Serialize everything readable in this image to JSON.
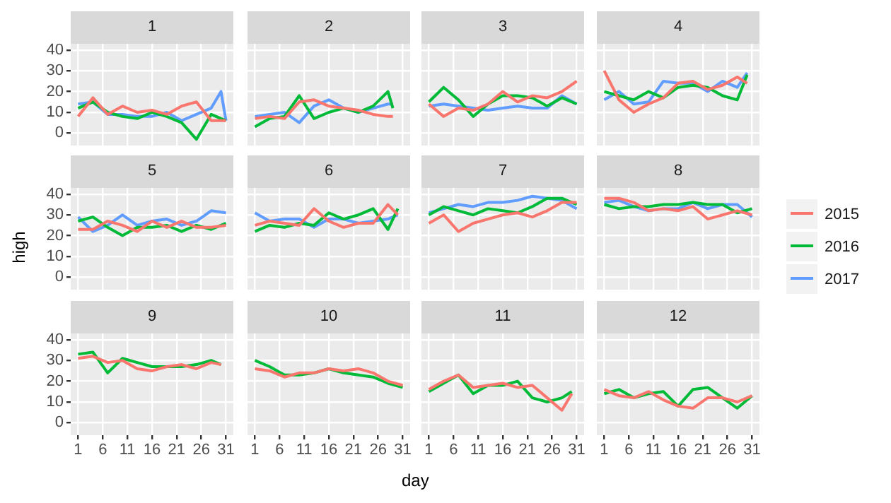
{
  "chart_data": [
    {
      "type": "line",
      "title": "1",
      "legend": "right",
      "x": [
        1,
        4,
        7,
        10,
        13,
        16,
        19,
        22,
        25,
        28,
        30,
        31
      ],
      "xlim": [
        -0.5,
        32.5
      ],
      "ylim": [
        -6,
        43
      ],
      "xticks": [
        1,
        6,
        11,
        16,
        21,
        26,
        31
      ],
      "yticks": [
        0,
        10,
        20,
        30,
        40
      ],
      "grid": true,
      "tick_labels": "y",
      "series": [
        {
          "name": "2015",
          "color": "#f8766d",
          "values": [
            8,
            17,
            9,
            13,
            10,
            11,
            9,
            13,
            15,
            6,
            6,
            6
          ]
        },
        {
          "name": "2016",
          "color": "#00ba38",
          "values": [
            12,
            15,
            10,
            8,
            7,
            10,
            8,
            5,
            -3,
            9,
            7,
            6
          ]
        },
        {
          "name": "2017",
          "color": "#619cff",
          "values": [
            14,
            15,
            9,
            9,
            8,
            8,
            10,
            6,
            9,
            12,
            20,
            6
          ]
        }
      ]
    },
    {
      "type": "line",
      "title": "2",
      "x": [
        1,
        4,
        7,
        10,
        13,
        16,
        19,
        22,
        25,
        28,
        29
      ],
      "xlim": [
        -0.5,
        32.5
      ],
      "ylim": [
        -6,
        43
      ],
      "xticks": [
        1,
        6,
        11,
        16,
        21,
        26,
        31
      ],
      "yticks": [
        0,
        10,
        20,
        30,
        40
      ],
      "grid": true,
      "tick_labels": false,
      "series": [
        {
          "name": "2015",
          "color": "#f8766d",
          "values": [
            7,
            8,
            7,
            15,
            16,
            13,
            12,
            11,
            9,
            8,
            8
          ]
        },
        {
          "name": "2016",
          "color": "#00ba38",
          "values": [
            3,
            7,
            8,
            18,
            7,
            10,
            12,
            10,
            13,
            20,
            12
          ]
        },
        {
          "name": "2017",
          "color": "#619cff",
          "values": [
            8,
            9,
            10,
            5,
            13,
            16,
            12,
            10,
            12,
            14,
            14
          ]
        }
      ]
    },
    {
      "type": "line",
      "title": "3",
      "x": [
        1,
        4,
        7,
        10,
        13,
        16,
        19,
        22,
        25,
        28,
        31
      ],
      "xlim": [
        -0.5,
        32.5
      ],
      "ylim": [
        -6,
        43
      ],
      "xticks": [
        1,
        6,
        11,
        16,
        21,
        26,
        31
      ],
      "yticks": [
        0,
        10,
        20,
        30,
        40
      ],
      "grid": true,
      "tick_labels": false,
      "series": [
        {
          "name": "2015",
          "color": "#f8766d",
          "values": [
            14,
            8,
            12,
            11,
            14,
            20,
            15,
            18,
            17,
            20,
            25
          ]
        },
        {
          "name": "2016",
          "color": "#00ba38",
          "values": [
            15,
            22,
            16,
            8,
            14,
            18,
            18,
            17,
            13,
            17,
            14
          ]
        },
        {
          "name": "2017",
          "color": "#619cff",
          "values": [
            13,
            14,
            13,
            12,
            11,
            12,
            13,
            12,
            12,
            18,
            14
          ]
        }
      ]
    },
    {
      "type": "line",
      "title": "4",
      "x": [
        1,
        4,
        7,
        10,
        13,
        16,
        19,
        22,
        25,
        28,
        30
      ],
      "xlim": [
        -0.5,
        32.5
      ],
      "ylim": [
        -6,
        43
      ],
      "xticks": [
        1,
        6,
        11,
        16,
        21,
        26,
        31
      ],
      "yticks": [
        0,
        10,
        20,
        30,
        40
      ],
      "grid": true,
      "tick_labels": false,
      "series": [
        {
          "name": "2015",
          "color": "#f8766d",
          "values": [
            30,
            16,
            10,
            14,
            17,
            24,
            25,
            21,
            23,
            27,
            24
          ]
        },
        {
          "name": "2016",
          "color": "#00ba38",
          "values": [
            20,
            18,
            16,
            20,
            17,
            22,
            23,
            22,
            18,
            16,
            28
          ]
        },
        {
          "name": "2017",
          "color": "#619cff",
          "values": [
            16,
            20,
            14,
            15,
            25,
            24,
            24,
            20,
            25,
            22,
            29
          ]
        }
      ]
    },
    {
      "type": "line",
      "title": "5",
      "ylabel": "high",
      "x": [
        1,
        4,
        7,
        10,
        13,
        16,
        19,
        22,
        25,
        28,
        31
      ],
      "xlim": [
        -0.5,
        32.5
      ],
      "ylim": [
        -6,
        43
      ],
      "xticks": [
        1,
        6,
        11,
        16,
        21,
        26,
        31
      ],
      "yticks": [
        0,
        10,
        20,
        30,
        40
      ],
      "grid": true,
      "tick_labels": "y",
      "series": [
        {
          "name": "2015",
          "color": "#f8766d",
          "values": [
            23,
            23,
            27,
            25,
            22,
            27,
            24,
            27,
            24,
            24,
            25
          ]
        },
        {
          "name": "2016",
          "color": "#00ba38",
          "values": [
            27,
            29,
            24,
            20,
            24,
            24,
            25,
            22,
            25,
            23,
            26
          ]
        },
        {
          "name": "2017",
          "color": "#619cff",
          "values": [
            29,
            22,
            25,
            30,
            25,
            27,
            28,
            25,
            27,
            32,
            31
          ]
        }
      ]
    },
    {
      "type": "line",
      "title": "6",
      "x": [
        1,
        4,
        7,
        10,
        13,
        16,
        19,
        22,
        25,
        28,
        30
      ],
      "xlim": [
        -0.5,
        32.5
      ],
      "ylim": [
        -6,
        43
      ],
      "xticks": [
        1,
        6,
        11,
        16,
        21,
        26,
        31
      ],
      "yticks": [
        0,
        10,
        20,
        30,
        40
      ],
      "grid": true,
      "tick_labels": false,
      "series": [
        {
          "name": "2015",
          "color": "#f8766d",
          "values": [
            25,
            27,
            26,
            25,
            33,
            27,
            24,
            26,
            26,
            35,
            30
          ]
        },
        {
          "name": "2016",
          "color": "#00ba38",
          "values": [
            22,
            25,
            24,
            26,
            25,
            31,
            28,
            30,
            33,
            23,
            33
          ]
        },
        {
          "name": "2017",
          "color": "#619cff",
          "values": [
            31,
            27,
            28,
            28,
            24,
            28,
            28,
            26,
            27,
            28,
            30
          ]
        }
      ]
    },
    {
      "type": "line",
      "title": "7",
      "x": [
        1,
        4,
        7,
        10,
        13,
        16,
        19,
        22,
        25,
        28,
        31
      ],
      "xlim": [
        -0.5,
        32.5
      ],
      "ylim": [
        -6,
        43
      ],
      "xticks": [
        1,
        6,
        11,
        16,
        21,
        26,
        31
      ],
      "yticks": [
        0,
        10,
        20,
        30,
        40
      ],
      "grid": true,
      "tick_labels": false,
      "series": [
        {
          "name": "2015",
          "color": "#f8766d",
          "values": [
            26,
            30,
            22,
            26,
            28,
            30,
            31,
            29,
            32,
            36,
            36
          ]
        },
        {
          "name": "2016",
          "color": "#00ba38",
          "values": [
            30,
            34,
            32,
            30,
            33,
            32,
            31,
            34,
            38,
            38,
            35
          ]
        },
        {
          "name": "2017",
          "color": "#619cff",
          "values": [
            31,
            33,
            35,
            34,
            36,
            36,
            37,
            39,
            38,
            37,
            33
          ]
        }
      ]
    },
    {
      "type": "line",
      "title": "8",
      "x": [
        1,
        4,
        7,
        10,
        13,
        16,
        19,
        22,
        25,
        28,
        31
      ],
      "xlim": [
        -0.5,
        32.5
      ],
      "ylim": [
        -6,
        43
      ],
      "xticks": [
        1,
        6,
        11,
        16,
        21,
        26,
        31
      ],
      "yticks": [
        0,
        10,
        20,
        30,
        40
      ],
      "grid": true,
      "tick_labels": false,
      "series": [
        {
          "name": "2015",
          "color": "#f8766d",
          "values": [
            38,
            38,
            36,
            32,
            33,
            32,
            34,
            28,
            30,
            32,
            30
          ]
        },
        {
          "name": "2016",
          "color": "#00ba38",
          "values": [
            35,
            33,
            34,
            34,
            35,
            35,
            36,
            35,
            35,
            31,
            33
          ]
        },
        {
          "name": "2017",
          "color": "#619cff",
          "values": [
            36,
            37,
            34,
            32,
            33,
            33,
            36,
            33,
            35,
            35,
            29
          ]
        }
      ]
    },
    {
      "type": "line",
      "title": "9",
      "x": [
        1,
        4,
        7,
        10,
        13,
        16,
        19,
        22,
        25,
        28,
        30
      ],
      "xlim": [
        -0.5,
        32.5
      ],
      "ylim": [
        -6,
        43
      ],
      "xticks": [
        1,
        6,
        11,
        16,
        21,
        26,
        31
      ],
      "yticks": [
        0,
        10,
        20,
        30,
        40
      ],
      "grid": true,
      "series": [
        {
          "name": "2015",
          "color": "#f8766d",
          "values": [
            31,
            32,
            29,
            30,
            26,
            25,
            27,
            28,
            26,
            29,
            28
          ]
        },
        {
          "name": "2016",
          "color": "#00ba38",
          "values": [
            33,
            34,
            24,
            31,
            29,
            27,
            27,
            27,
            28,
            30,
            28
          ]
        }
      ]
    },
    {
      "type": "line",
      "title": "10",
      "xlabel": "day",
      "x": [
        1,
        4,
        7,
        10,
        13,
        16,
        19,
        22,
        25,
        28,
        31
      ],
      "xlim": [
        -0.5,
        32.5
      ],
      "ylim": [
        -6,
        43
      ],
      "xticks": [
        1,
        6,
        11,
        16,
        21,
        26,
        31
      ],
      "yticks": [
        0,
        10,
        20,
        30,
        40
      ],
      "grid": true,
      "tick_labels": "x",
      "series": [
        {
          "name": "2015",
          "color": "#f8766d",
          "values": [
            26,
            25,
            22,
            24,
            24,
            26,
            25,
            26,
            24,
            20,
            18
          ]
        },
        {
          "name": "2016",
          "color": "#00ba38",
          "values": [
            30,
            27,
            23,
            23,
            24,
            26,
            24,
            23,
            22,
            19,
            17
          ]
        }
      ]
    },
    {
      "type": "line",
      "title": "11",
      "x": [
        1,
        4,
        7,
        10,
        13,
        16,
        19,
        22,
        25,
        28,
        30
      ],
      "xlim": [
        -0.5,
        32.5
      ],
      "ylim": [
        -6,
        43
      ],
      "xticks": [
        1,
        6,
        11,
        16,
        21,
        26,
        31
      ],
      "yticks": [
        0,
        10,
        20,
        30,
        40
      ],
      "grid": true,
      "tick_labels": "x",
      "series": [
        {
          "name": "2015",
          "color": "#f8766d",
          "values": [
            16,
            20,
            23,
            17,
            18,
            19,
            17,
            18,
            12,
            6,
            14
          ]
        },
        {
          "name": "2016",
          "color": "#00ba38",
          "values": [
            15,
            19,
            23,
            14,
            18,
            18,
            20,
            12,
            10,
            12,
            15
          ]
        }
      ]
    },
    {
      "type": "line",
      "title": "12",
      "x": [
        1,
        4,
        7,
        10,
        13,
        16,
        19,
        22,
        25,
        28,
        31
      ],
      "xlim": [
        -0.5,
        32.5
      ],
      "ylim": [
        -6,
        43
      ],
      "xticks": [
        1,
        6,
        11,
        16,
        21,
        26,
        31
      ],
      "yticks": [
        0,
        10,
        20,
        30,
        40
      ],
      "grid": true,
      "tick_labels": "x",
      "series": [
        {
          "name": "2015",
          "color": "#f8766d",
          "values": [
            16,
            13,
            12,
            15,
            11,
            8,
            7,
            12,
            12,
            10,
            13
          ]
        },
        {
          "name": "2016",
          "color": "#00ba38",
          "values": [
            14,
            16,
            12,
            14,
            15,
            8,
            16,
            17,
            12,
            7,
            13
          ]
        }
      ]
    }
  ]
}
